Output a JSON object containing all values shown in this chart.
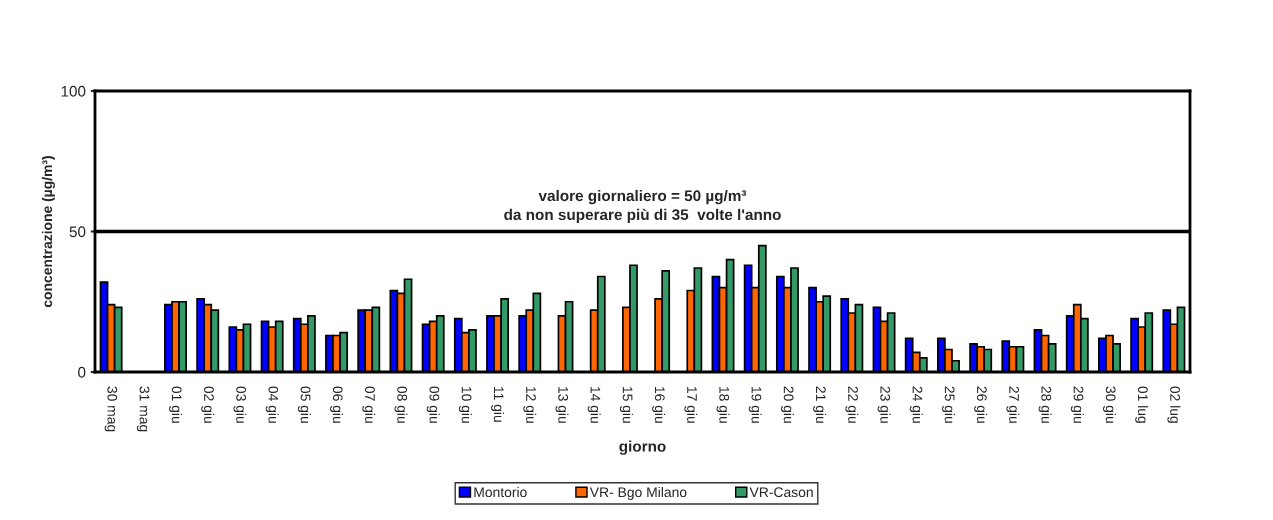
{
  "chart_data": {
    "type": "bar",
    "xlabel": "giorno",
    "ylabel": "concentrazione (µg/m³)",
    "categories": [
      "30 mag",
      "31 mag",
      "01 giu",
      "02 giu",
      "03 giu",
      "04 giu",
      "05 giu",
      "06 giu",
      "07 giu",
      "08 giu",
      "09 giu",
      "10 giu",
      "11 giu",
      "12 giu",
      "13 giu",
      "14 giu",
      "15 giu",
      "16 giu",
      "17 giu",
      "18 giu",
      "19 giu",
      "20 giu",
      "21 giu",
      "22 giu",
      "23 giu",
      "24 giu",
      "25 giu",
      "26 giu",
      "27 giu",
      "28 giu",
      "29 giu",
      "30 giu",
      "01 lug",
      "02 lug"
    ],
    "series": [
      {
        "name": "Montorio",
        "color": "#0000ff",
        "values": [
          32,
          null,
          24,
          26,
          16,
          18,
          19,
          13,
          22,
          29,
          17,
          19,
          20,
          20,
          null,
          null,
          null,
          null,
          null,
          34,
          38,
          34,
          30,
          26,
          23,
          12,
          12,
          10,
          11,
          15,
          20,
          12,
          19,
          22
        ]
      },
      {
        "name": "VR- Bgo Milano",
        "color": "#ff6600",
        "values": [
          24,
          null,
          25,
          24,
          15,
          16,
          17,
          13,
          22,
          28,
          18,
          14,
          20,
          22,
          20,
          22,
          23,
          26,
          29,
          30,
          30,
          30,
          25,
          21,
          18,
          7,
          8,
          9,
          9,
          13,
          24,
          13,
          16,
          17
        ]
      },
      {
        "name": "VR-Cason",
        "color": "#339966",
        "values": [
          23,
          null,
          25,
          22,
          17,
          18,
          20,
          14,
          23,
          33,
          20,
          15,
          26,
          28,
          25,
          34,
          38,
          36,
          37,
          40,
          45,
          37,
          27,
          24,
          21,
          5,
          4,
          8,
          9,
          10,
          19,
          10,
          21,
          23
        ]
      }
    ],
    "ylim": [
      0,
      100
    ],
    "yticks": [
      0,
      50,
      100
    ],
    "ref_lines": [
      {
        "axis": "y",
        "value": 50,
        "color": "#000000",
        "line_style": "solid"
      }
    ],
    "annotations": [
      {
        "text": "valore giornaliero = 50 µg/m³\nda non superare più di 35  volte l'anno",
        "y": 50
      }
    ],
    "grid": false,
    "legend": "bottom"
  }
}
